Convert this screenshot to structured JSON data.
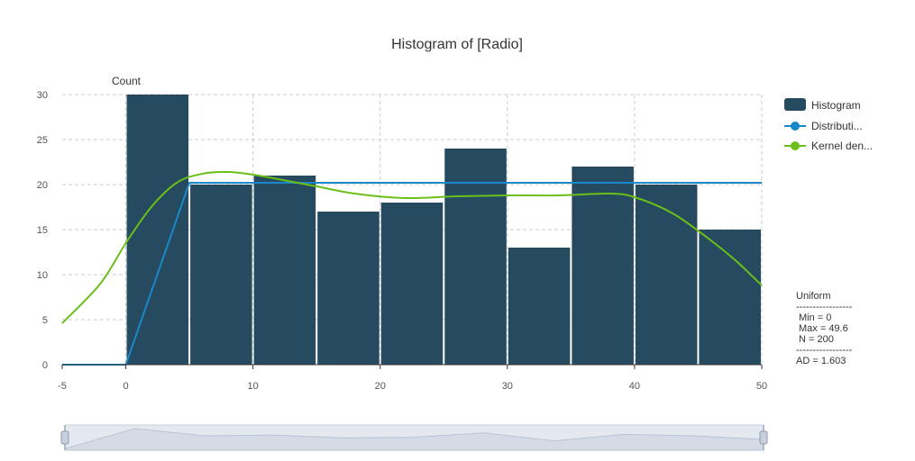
{
  "chart_data": {
    "type": "bar",
    "title": "Histogram of [Radio]",
    "ylabel": "Count",
    "xlabel": "",
    "xlim": [
      -5,
      50
    ],
    "ylim": [
      0,
      30
    ],
    "x_ticks": [
      -5,
      0,
      10,
      20,
      30,
      40,
      50
    ],
    "y_ticks": [
      0,
      5,
      10,
      15,
      20,
      25,
      30
    ],
    "grid": true,
    "legend_position": "right",
    "bins": [
      {
        "start": 0,
        "end": 5,
        "count": 30
      },
      {
        "start": 5,
        "end": 10,
        "count": 20
      },
      {
        "start": 10,
        "end": 15,
        "count": 21
      },
      {
        "start": 15,
        "end": 20,
        "count": 17
      },
      {
        "start": 20,
        "end": 25,
        "count": 18
      },
      {
        "start": 25,
        "end": 30,
        "count": 24
      },
      {
        "start": 30,
        "end": 35,
        "count": 13
      },
      {
        "start": 35,
        "end": 40,
        "count": 22
      },
      {
        "start": 40,
        "end": 45,
        "count": 20
      },
      {
        "start": 45,
        "end": 50,
        "count": 15
      }
    ],
    "series": [
      {
        "name": "Histogram",
        "color": "#264a60"
      },
      {
        "name": "Distributi...",
        "color": "#1a88c9",
        "points": [
          [
            -5,
            0
          ],
          [
            0,
            0
          ],
          [
            5,
            20.2
          ],
          [
            50,
            20.2
          ]
        ]
      },
      {
        "name": "Kernel den...",
        "color": "#6bbf1a",
        "points": [
          [
            -5,
            4.6
          ],
          [
            -2,
            9
          ],
          [
            0,
            13.5
          ],
          [
            2,
            17.5
          ],
          [
            4,
            20.2
          ],
          [
            6,
            21.2
          ],
          [
            8,
            21.4
          ],
          [
            10,
            21.1
          ],
          [
            12,
            20.6
          ],
          [
            15,
            19.8
          ],
          [
            18,
            19.0
          ],
          [
            22,
            18.5
          ],
          [
            26,
            18.7
          ],
          [
            30,
            18.8
          ],
          [
            34,
            18.8
          ],
          [
            38,
            19.0
          ],
          [
            40,
            18.6
          ],
          [
            43,
            16.8
          ],
          [
            46,
            13.8
          ],
          [
            48,
            11.5
          ],
          [
            50,
            8.8
          ]
        ]
      }
    ]
  },
  "stats": {
    "title": "Uniform",
    "divider": "-----------------",
    "min": "Min = 0",
    "max": "Max = 49.6",
    "n": "N = 200",
    "ad": "AD = 1.603"
  },
  "colors": {
    "bar": "#264a60",
    "distribution": "#1a88c9",
    "kde": "#6bbf1a",
    "grid": "#cccccc",
    "slider_fill": "#d5dbe5"
  },
  "slider": {
    "overview": [
      2,
      30,
      20,
      21,
      17,
      18,
      24,
      13,
      22,
      20,
      15
    ]
  }
}
